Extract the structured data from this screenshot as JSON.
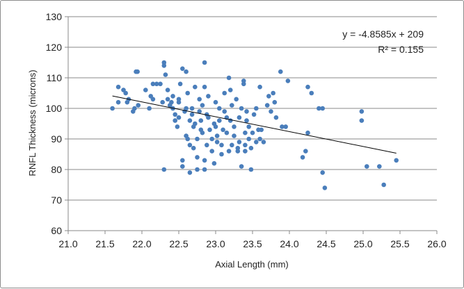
{
  "chart_data": {
    "type": "scatter",
    "title": "",
    "xlabel": "Axial Length (mm)",
    "ylabel": "RNFL Thickness (microns)",
    "xlim": [
      21.0,
      26.0
    ],
    "ylim": [
      60,
      130
    ],
    "x_ticks": [
      "21.0",
      "21.5",
      "22.0",
      "22.5",
      "23.0",
      "23.5",
      "24.0",
      "24.5",
      "25.0",
      "25.5",
      "26.0"
    ],
    "y_ticks": [
      "60",
      "70",
      "80",
      "90",
      "100",
      "110",
      "120",
      "130"
    ],
    "grid": "horizontal",
    "marker_color": "#4a7ebb",
    "trendline": {
      "equation_label": "y = -4.8585x + 209",
      "r2_label": "R² = 0.155",
      "slope": -4.8585,
      "intercept": 209,
      "x_range": [
        21.6,
        25.45
      ],
      "color": "#000000"
    },
    "points": [
      [
        21.6,
        100
      ],
      [
        21.68,
        102
      ],
      [
        21.68,
        107
      ],
      [
        21.75,
        106
      ],
      [
        21.78,
        105
      ],
      [
        21.8,
        102
      ],
      [
        21.82,
        103
      ],
      [
        21.88,
        99
      ],
      [
        21.9,
        100
      ],
      [
        21.92,
        112
      ],
      [
        21.94,
        112
      ],
      [
        21.95,
        101
      ],
      [
        22.05,
        106
      ],
      [
        22.1,
        100
      ],
      [
        22.12,
        104
      ],
      [
        22.15,
        103
      ],
      [
        22.15,
        108
      ],
      [
        22.2,
        108
      ],
      [
        22.25,
        108
      ],
      [
        22.28,
        102
      ],
      [
        22.3,
        80
      ],
      [
        22.3,
        115
      ],
      [
        22.3,
        114
      ],
      [
        22.32,
        111
      ],
      [
        22.35,
        106
      ],
      [
        22.35,
        103
      ],
      [
        22.38,
        101
      ],
      [
        22.4,
        102
      ],
      [
        22.42,
        104
      ],
      [
        22.42,
        100
      ],
      [
        22.45,
        98
      ],
      [
        22.45,
        96
      ],
      [
        22.48,
        94
      ],
      [
        22.5,
        103
      ],
      [
        22.5,
        102
      ],
      [
        22.5,
        97
      ],
      [
        22.52,
        108
      ],
      [
        22.55,
        113
      ],
      [
        22.55,
        81
      ],
      [
        22.55,
        83
      ],
      [
        22.58,
        99
      ],
      [
        22.6,
        112
      ],
      [
        22.6,
        100
      ],
      [
        22.6,
        91
      ],
      [
        22.62,
        105
      ],
      [
        22.62,
        90
      ],
      [
        22.65,
        79
      ],
      [
        22.65,
        88
      ],
      [
        22.65,
        96
      ],
      [
        22.68,
        100
      ],
      [
        22.68,
        98
      ],
      [
        22.7,
        94
      ],
      [
        22.7,
        87
      ],
      [
        22.72,
        107
      ],
      [
        22.72,
        95
      ],
      [
        22.75,
        80
      ],
      [
        22.75,
        84
      ],
      [
        22.75,
        90
      ],
      [
        22.78,
        103
      ],
      [
        22.78,
        99
      ],
      [
        22.8,
        96
      ],
      [
        22.8,
        93
      ],
      [
        22.82,
        92
      ],
      [
        22.82,
        101
      ],
      [
        22.85,
        107
      ],
      [
        22.85,
        115
      ],
      [
        22.85,
        80
      ],
      [
        22.85,
        83
      ],
      [
        22.88,
        98
      ],
      [
        22.88,
        88
      ],
      [
        22.9,
        104
      ],
      [
        22.9,
        97
      ],
      [
        22.92,
        93
      ],
      [
        22.95,
        90
      ],
      [
        22.95,
        86
      ],
      [
        22.98,
        95
      ],
      [
        22.98,
        82
      ],
      [
        23.0,
        102
      ],
      [
        23.0,
        94
      ],
      [
        23.02,
        91
      ],
      [
        23.02,
        89
      ],
      [
        23.05,
        96
      ],
      [
        23.05,
        100
      ],
      [
        23.08,
        88
      ],
      [
        23.08,
        85
      ],
      [
        23.1,
        93
      ],
      [
        23.12,
        105
      ],
      [
        23.12,
        99
      ],
      [
        23.15,
        97
      ],
      [
        23.15,
        92
      ],
      [
        23.18,
        110
      ],
      [
        23.18,
        86
      ],
      [
        23.2,
        106
      ],
      [
        23.2,
        96
      ],
      [
        23.22,
        101
      ],
      [
        23.22,
        88
      ],
      [
        23.25,
        94
      ],
      [
        23.25,
        91
      ],
      [
        23.28,
        103
      ],
      [
        23.3,
        87
      ],
      [
        23.3,
        86
      ],
      [
        23.32,
        89
      ],
      [
        23.32,
        97
      ],
      [
        23.35,
        81
      ],
      [
        23.35,
        100
      ],
      [
        23.38,
        108
      ],
      [
        23.38,
        109
      ],
      [
        23.4,
        92
      ],
      [
        23.4,
        86
      ],
      [
        23.4,
        88
      ],
      [
        23.42,
        99
      ],
      [
        23.42,
        96
      ],
      [
        23.45,
        94
      ],
      [
        23.45,
        90
      ],
      [
        23.48,
        80
      ],
      [
        23.48,
        87
      ],
      [
        23.5,
        92
      ],
      [
        23.52,
        98
      ],
      [
        23.55,
        100
      ],
      [
        23.55,
        89
      ],
      [
        23.58,
        93
      ],
      [
        23.6,
        107
      ],
      [
        23.6,
        90
      ],
      [
        23.62,
        93
      ],
      [
        23.65,
        89
      ],
      [
        23.7,
        101
      ],
      [
        23.72,
        104
      ],
      [
        23.75,
        99
      ],
      [
        23.78,
        105
      ],
      [
        23.8,
        102
      ],
      [
        23.82,
        97
      ],
      [
        23.88,
        112
      ],
      [
        23.9,
        94
      ],
      [
        23.95,
        94
      ],
      [
        23.98,
        109
      ],
      [
        24.18,
        84
      ],
      [
        24.22,
        86
      ],
      [
        24.25,
        107
      ],
      [
        24.25,
        92
      ],
      [
        24.3,
        105
      ],
      [
        24.4,
        100
      ],
      [
        24.45,
        100
      ],
      [
        24.45,
        79
      ],
      [
        24.48,
        74
      ],
      [
        24.98,
        99
      ],
      [
        24.98,
        96
      ],
      [
        25.05,
        81
      ],
      [
        25.22,
        81
      ],
      [
        25.28,
        75
      ],
      [
        25.45,
        83
      ]
    ]
  }
}
